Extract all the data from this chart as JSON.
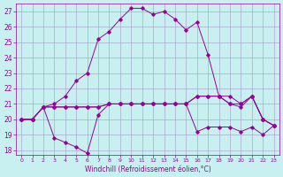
{
  "xlabel": "Windchill (Refroidissement éolien,°C)",
  "bg_color": "#c8f0f0",
  "line_color": "#990099",
  "grid_color": "#aaaacc",
  "xlim": [
    -0.5,
    23.5
  ],
  "ylim": [
    17.7,
    27.5
  ],
  "xticks": [
    0,
    1,
    2,
    3,
    4,
    5,
    6,
    7,
    8,
    9,
    10,
    11,
    12,
    13,
    14,
    15,
    16,
    17,
    18,
    19,
    20,
    21,
    22,
    23
  ],
  "yticks": [
    18,
    19,
    20,
    21,
    22,
    23,
    24,
    25,
    26,
    27
  ],
  "line1_x": [
    0,
    1,
    2,
    3,
    4,
    5,
    6,
    7,
    8,
    9,
    10,
    11,
    12,
    13,
    14,
    15,
    16,
    17,
    18,
    19,
    20,
    21,
    22,
    23
  ],
  "line1_y": [
    20,
    20,
    20.8,
    20.8,
    20.8,
    20.8,
    20.8,
    20.8,
    21.0,
    21.0,
    21.0,
    21.0,
    21.0,
    21.0,
    21.0,
    21.0,
    21.5,
    21.5,
    21.5,
    21.5,
    21.0,
    21.5,
    20.0,
    19.6
  ],
  "line2_x": [
    0,
    1,
    2,
    3,
    4,
    5,
    6,
    7,
    8,
    9,
    10,
    11,
    12,
    13,
    14,
    15,
    16,
    17,
    18,
    19,
    20,
    21,
    22,
    23
  ],
  "line2_y": [
    20,
    20,
    20.8,
    20.8,
    20.8,
    20.8,
    20.8,
    20.8,
    21.0,
    21.0,
    21.0,
    21.0,
    21.0,
    21.0,
    21.0,
    21.0,
    21.5,
    21.5,
    21.5,
    21.0,
    21.0,
    21.5,
    20.0,
    19.6
  ],
  "line3_x": [
    0,
    1,
    2,
    3,
    4,
    5,
    6,
    7,
    8,
    9,
    10,
    11,
    12,
    13,
    14,
    15,
    16,
    17,
    18,
    19,
    20,
    21,
    22,
    23
  ],
  "line3_y": [
    20,
    20,
    20.8,
    18.8,
    18.5,
    18.2,
    17.8,
    20.3,
    21.0,
    21.0,
    21.0,
    21.0,
    21.0,
    21.0,
    21.0,
    21.0,
    19.2,
    19.5,
    19.5,
    19.5,
    19.2,
    19.5,
    19.0,
    19.6
  ],
  "line4_x": [
    0,
    1,
    2,
    3,
    4,
    5,
    6,
    7,
    8,
    9,
    10,
    11,
    12,
    13,
    14,
    15,
    16,
    17,
    18,
    19,
    20,
    21,
    22,
    23
  ],
  "line4_y": [
    20,
    20,
    20.8,
    21.0,
    21.5,
    22.5,
    23.0,
    25.2,
    25.7,
    26.5,
    27.2,
    27.2,
    26.8,
    27.0,
    26.5,
    25.8,
    26.3,
    24.2,
    21.5,
    21.0,
    20.8,
    21.5,
    20.0,
    19.6
  ]
}
